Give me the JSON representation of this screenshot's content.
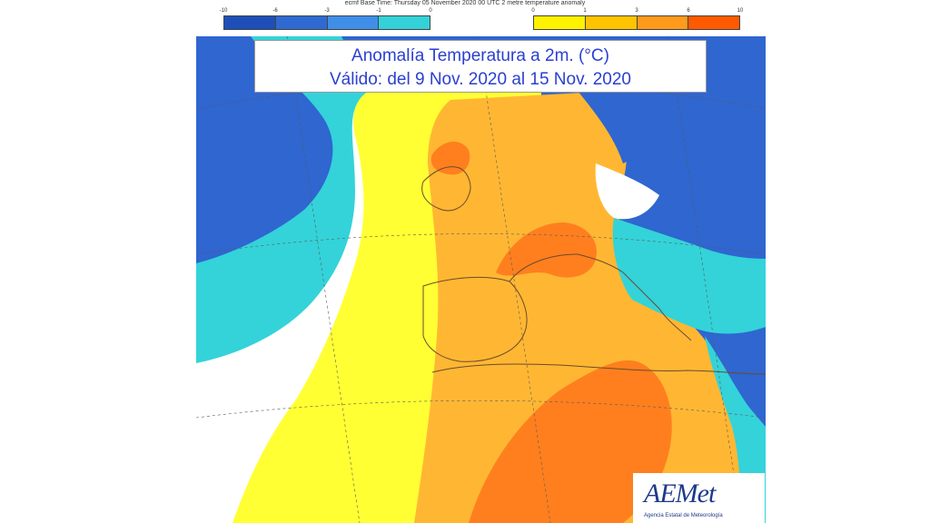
{
  "header": {
    "text": "ecmf  Base Time: Thursday 05 November 2020 00 UTC 2 metre temperature anomaly"
  },
  "legend_left": {
    "ticks": [
      "-10",
      "-6",
      "-3",
      "-1",
      "0"
    ],
    "colors": [
      "#1e4fb8",
      "#2f6ad3",
      "#3f8fe8",
      "#34d2d8"
    ]
  },
  "legend_right": {
    "ticks": [
      "0",
      "1",
      "3",
      "6",
      "10"
    ],
    "colors": [
      "#fff200",
      "#ffc400",
      "#ff9a1a",
      "#ff5a00"
    ]
  },
  "title": {
    "line1": "Anomalía Temperatura a 2m. (°C)",
    "line2": "Válido: del 9 Nov. 2020 al 15 Nov. 2020"
  },
  "logo": {
    "word": "AEMet",
    "subtitle": "Agencia Estatal de Meteorología"
  },
  "map_colors": {
    "deep_blue": "#2f66d0",
    "cyan": "#33d3d9",
    "white": "#ffffff",
    "yellow": "#ffff33",
    "light_orange": "#ffb733",
    "orange": "#ff9a2a",
    "dark_orange": "#ff7f1f"
  }
}
